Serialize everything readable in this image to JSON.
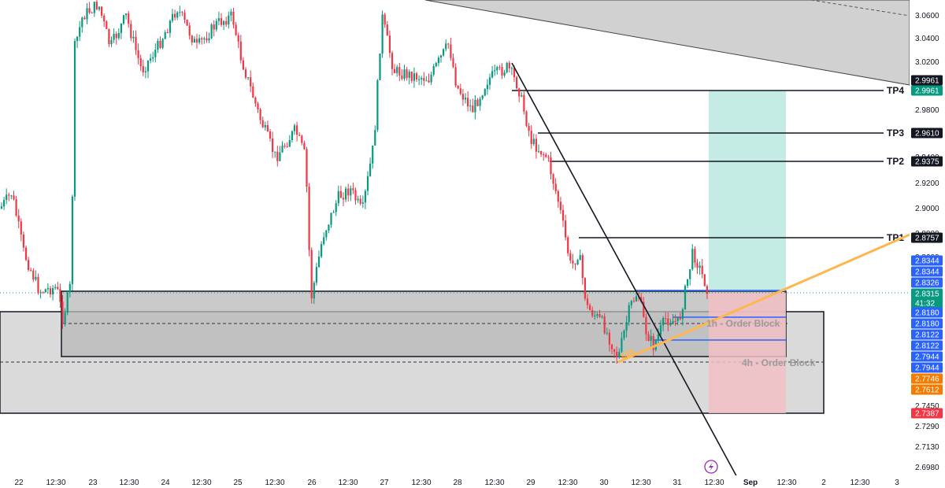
{
  "chart_data": {
    "type": "candlestick",
    "x_axis": {
      "labels": [
        "22",
        "12:30",
        "23",
        "12:30",
        "24",
        "12:30",
        "25",
        "12:30",
        "26",
        "12:30",
        "27",
        "12:30",
        "28",
        "12:30",
        "29",
        "12:30",
        "30",
        "12:30",
        "31",
        "12:30",
        "Sep",
        "12:30",
        "2",
        "12:30",
        "3"
      ]
    },
    "y_axis": {
      "range": [
        2.68,
        3.07
      ],
      "tick_labels": [
        "3.0600",
        "3.0400",
        "3.0200",
        "2.9800",
        "2.9600",
        "2.9400",
        "2.9200",
        "2.9000",
        "2.8800",
        "2.8600",
        "2.7450",
        "2.7290",
        "2.7130",
        "2.6980"
      ]
    },
    "price_badges": [
      {
        "label": "2.9961",
        "color": "#131722"
      },
      {
        "label": "2.9961",
        "color": "#089981"
      },
      {
        "label": "2.9610",
        "color": "#131722"
      },
      {
        "label": "2.9375",
        "color": "#131722"
      },
      {
        "label": "2.8757",
        "color": "#131722"
      },
      {
        "label": "2.8344",
        "color": "#2962ff"
      },
      {
        "label": "2.8344",
        "color": "#2962ff"
      },
      {
        "label": "2.8326",
        "color": "#2962ff"
      },
      {
        "label": "2.8315",
        "color": "#089981"
      },
      {
        "label": "41:32",
        "color": "#089981"
      },
      {
        "label": "2.8180",
        "color": "#2962ff"
      },
      {
        "label": "2.8180",
        "color": "#2962ff"
      },
      {
        "label": "2.8122",
        "color": "#2962ff"
      },
      {
        "label": "2.8122",
        "color": "#2962ff"
      },
      {
        "label": "2.7944",
        "color": "#2962ff"
      },
      {
        "label": "2.7944",
        "color": "#2962ff"
      },
      {
        "label": "2.7746",
        "color": "#f57c00"
      },
      {
        "label": "2.7612",
        "color": "#f57c00"
      },
      {
        "label": "2.7387",
        "color": "#f23645"
      }
    ],
    "targets": [
      {
        "label": "TP4",
        "value": 2.9961
      },
      {
        "label": "TP3",
        "value": 2.961
      },
      {
        "label": "TP2",
        "value": 2.9375
      },
      {
        "label": "TP1",
        "value": 2.8757
      }
    ],
    "zones": [
      {
        "label": "1h - Order Block",
        "top": 2.8326,
        "bottom": 2.7944
      },
      {
        "label": "4h - Order Block",
        "top": 2.818,
        "bottom": 2.7387
      }
    ],
    "annotations": [
      "$$$"
    ],
    "entry": 2.8315,
    "stop": 2.7387,
    "colors": {
      "up": "#089981",
      "down": "#f23645",
      "tp_zone": "#b2e4dc",
      "sl_zone": "#f1c0c6",
      "order_block": "#d9d9d9",
      "trendline": "#131722",
      "support": "#ffb74d"
    }
  }
}
